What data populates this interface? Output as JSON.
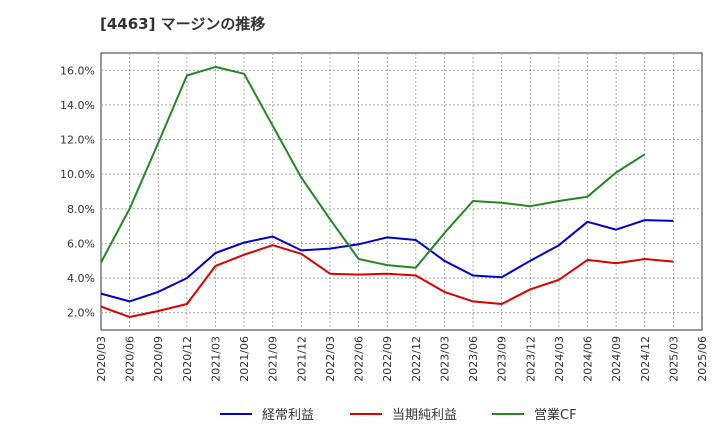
{
  "chart_data": {
    "type": "line",
    "title": "[4463]  マージンの推移",
    "xlabel": "",
    "ylabel": "",
    "x": [
      "2020/03",
      "2020/06",
      "2020/09",
      "2020/12",
      "2021/03",
      "2021/06",
      "2021/09",
      "2021/12",
      "2022/03",
      "2022/06",
      "2022/09",
      "2022/12",
      "2023/03",
      "2023/06",
      "2023/09",
      "2023/12",
      "2024/03",
      "2024/06",
      "2024/09",
      "2024/12",
      "2025/03",
      "2025/06"
    ],
    "ylim": [
      1.0,
      17.0
    ],
    "yticks": [
      2,
      4,
      6,
      8,
      10,
      12,
      14,
      16
    ],
    "ytick_labels": [
      "2.0%",
      "4.0%",
      "6.0%",
      "8.0%",
      "10.0%",
      "12.0%",
      "14.0%",
      "16.0%"
    ],
    "grid": true,
    "legend_position": "bottom",
    "series": [
      {
        "name": "経常利益",
        "color": "#0000cc",
        "values": [
          3.1,
          2.65,
          3.2,
          4.0,
          5.45,
          6.05,
          6.4,
          5.6,
          5.7,
          5.95,
          6.35,
          6.2,
          5.0,
          4.15,
          4.05,
          5.0,
          5.9,
          7.25,
          6.8,
          7.35,
          7.3,
          null
        ]
      },
      {
        "name": "当期純利益",
        "color": "#dd0000",
        "values": [
          2.35,
          1.75,
          2.1,
          2.5,
          4.7,
          5.35,
          5.9,
          5.4,
          4.25,
          4.2,
          4.25,
          4.15,
          3.2,
          2.65,
          2.5,
          3.35,
          3.9,
          5.05,
          4.85,
          5.1,
          4.95,
          null
        ]
      },
      {
        "name": "営業CF",
        "color": "#228822",
        "values": [
          4.9,
          8.0,
          11.8,
          15.7,
          16.2,
          15.8,
          12.8,
          9.8,
          7.4,
          5.1,
          4.75,
          4.6,
          6.6,
          8.45,
          8.35,
          8.15,
          8.45,
          8.7,
          10.1,
          11.15,
          null,
          null
        ]
      }
    ]
  }
}
